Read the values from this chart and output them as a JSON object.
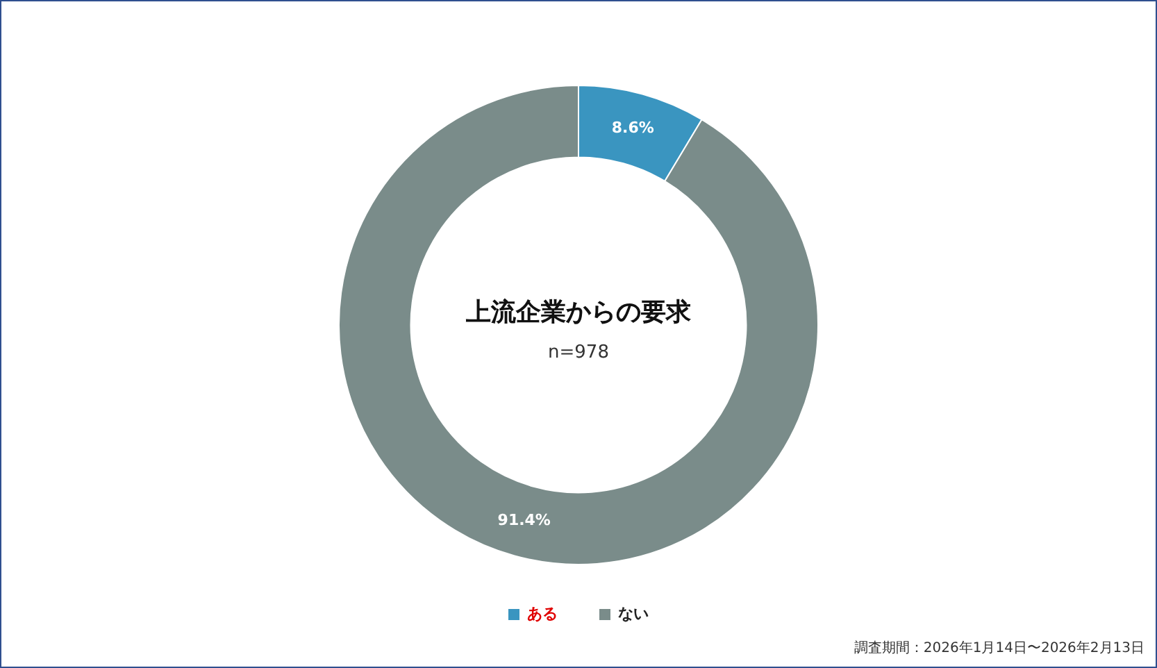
{
  "chart_data": {
    "type": "donut",
    "title": "上流企業からの要求",
    "subtitle": "n=978",
    "categories": [
      "ある",
      "ない"
    ],
    "values": [
      8.6,
      91.4
    ],
    "colors": [
      "#3a95c0",
      "#7a8c8a"
    ],
    "value_labels": [
      "8.6%",
      "91.4%"
    ],
    "legend": "bottom",
    "annotations": [
      "調査期間：2026年1月14日〜2026年2月13日"
    ]
  }
}
